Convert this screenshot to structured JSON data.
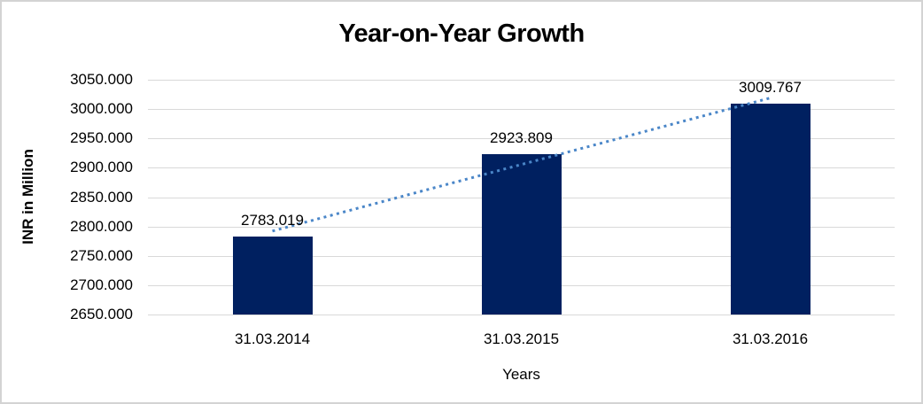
{
  "window": {
    "background": "#ffffff",
    "border_color": "#d3d3d3"
  },
  "chart_data": {
    "type": "bar",
    "title": "Year-on-Year Growth",
    "xlabel": "Years",
    "ylabel": "INR in Million",
    "categories": [
      "31.03.2014",
      "31.03.2015",
      "31.03.2016"
    ],
    "values": [
      2783.019,
      2923.809,
      3009.767
    ],
    "data_labels": [
      "2783.019",
      "2923.809",
      "3009.767"
    ],
    "ylim": [
      2650,
      3050
    ],
    "ytick_values": [
      3050,
      3000,
      2950,
      2900,
      2850,
      2800,
      2750,
      2700,
      2650
    ],
    "ytick_labels": [
      "3050.000",
      "3000.000",
      "2950.000",
      "2900.000",
      "2850.000",
      "2800.000",
      "2750.000",
      "2700.000",
      "2650.000"
    ],
    "grid": true,
    "legend": "none",
    "bar_color": "#002060",
    "gridline_color": "#d9d9d9",
    "label_color": "#000000",
    "trendline": {
      "type": "linear",
      "style": "dotted",
      "color": "#4a86c8",
      "endpoint_values": [
        2792.2,
        3018.9
      ]
    }
  }
}
